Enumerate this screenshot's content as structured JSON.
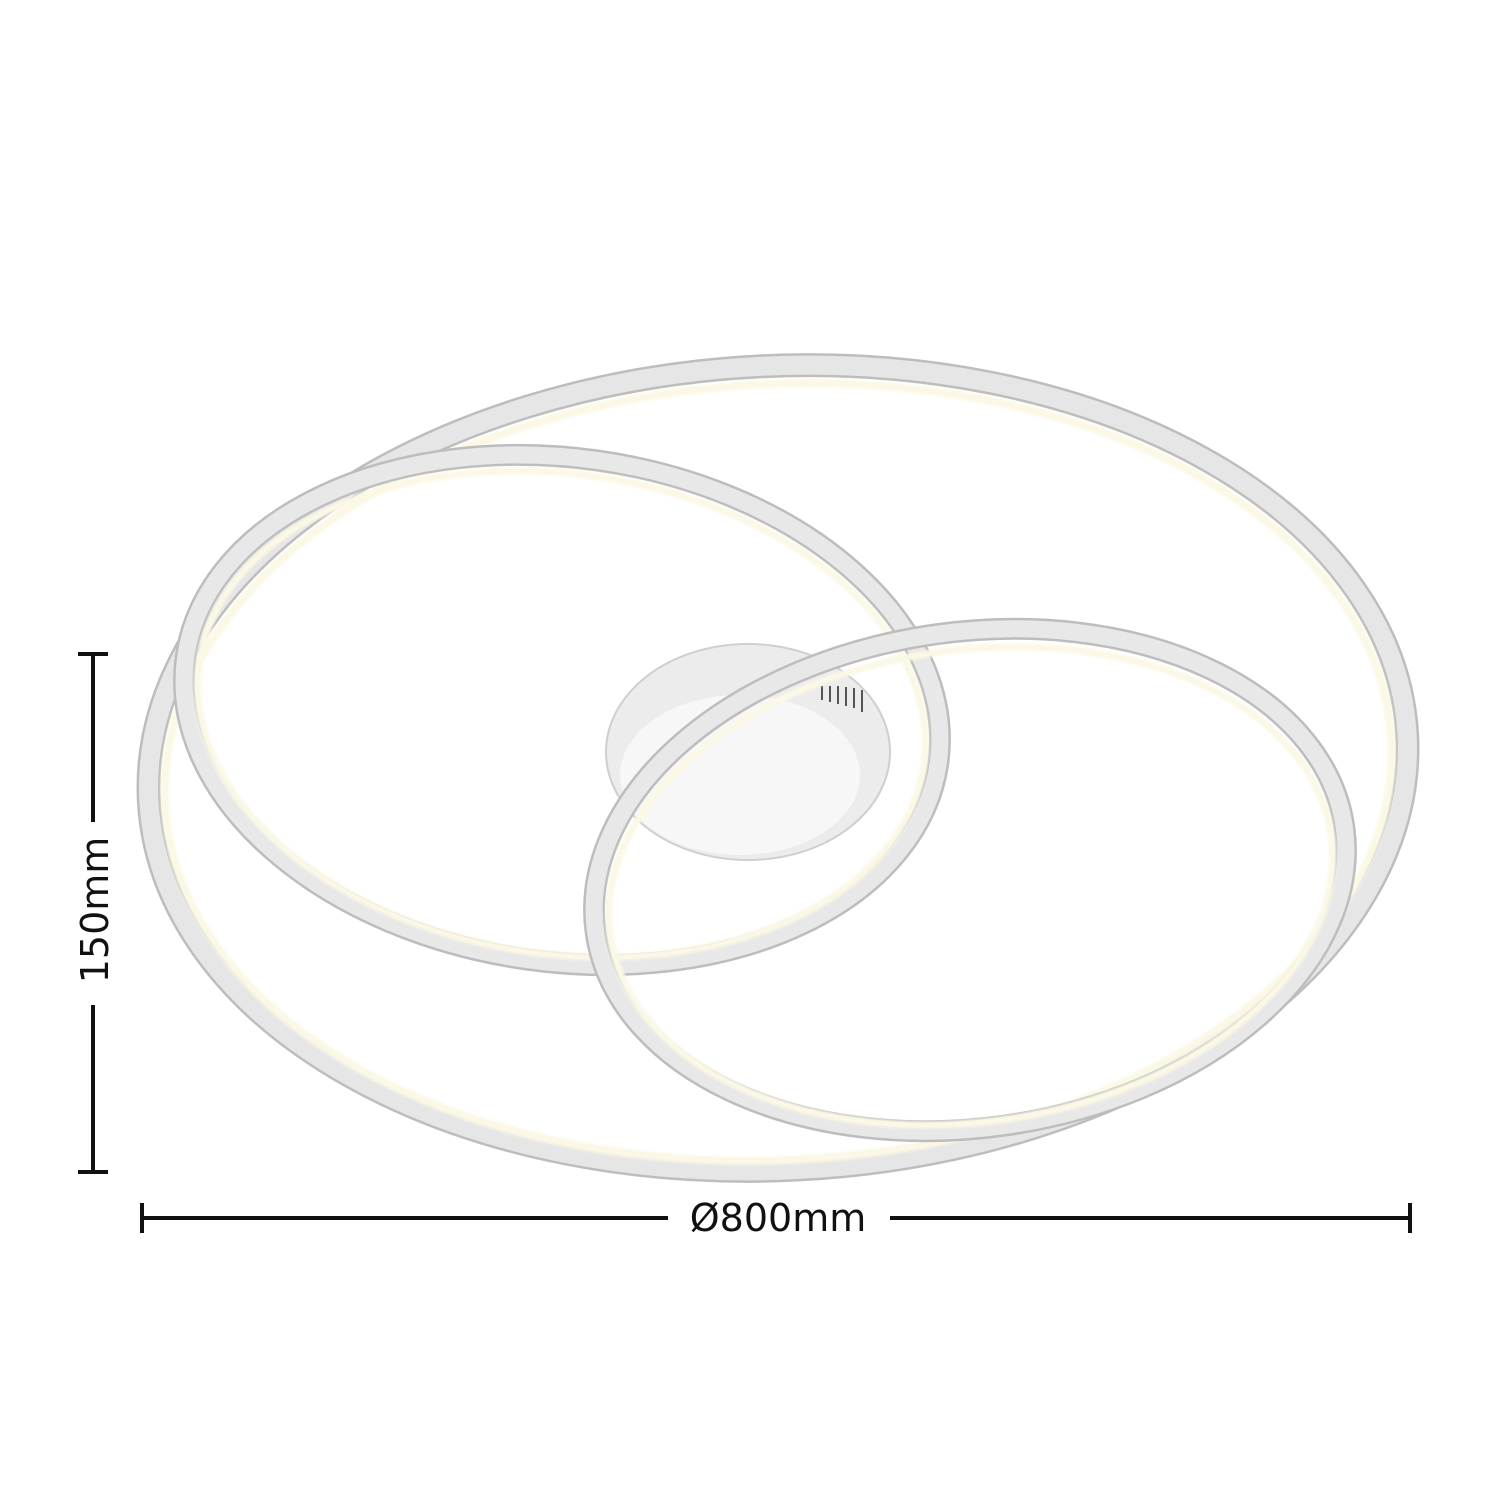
{
  "dimensions": {
    "height": "150mm",
    "diameter": "Ø800mm"
  },
  "colors": {
    "ring_frame": "#d9d9d9",
    "ring_edge": "#bdbdbd",
    "led_glow": "#fbf8e6",
    "dimension_line": "#111111"
  }
}
